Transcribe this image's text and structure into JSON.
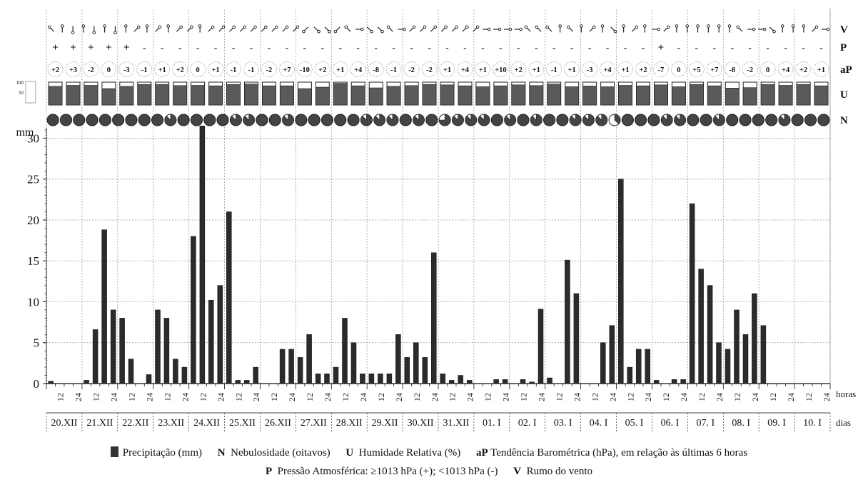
{
  "chart_data": {
    "type": "bar",
    "ylabel": "mm",
    "ylim": [
      0,
      31
    ],
    "yticks": [
      0,
      5,
      10,
      15,
      20,
      25,
      30
    ],
    "xlabel_hours": "horas",
    "xlabel_days": "dias",
    "hour_ticks": [
      "12",
      "24"
    ],
    "days": [
      "20.XII",
      "21.XII",
      "22.XII",
      "23.XII",
      "24.XII",
      "25.XII",
      "26.XII",
      "27.XII",
      "28.XII",
      "29.XII",
      "30.XII",
      "31.XII",
      "01. I",
      "02. I",
      "03. I",
      "04. I",
      "05. I",
      "06. I",
      "07. I",
      "08. I",
      "09. I",
      "10. I"
    ],
    "precipitation": [
      0.3,
      0,
      0,
      0,
      0.4,
      6.6,
      18.8,
      9,
      8,
      3,
      0,
      1.1,
      9,
      8,
      3,
      2,
      18,
      31.5,
      10.2,
      12,
      21,
      0.4,
      0.4,
      2,
      0,
      0,
      4.2,
      4.2,
      3.2,
      6,
      1.2,
      1.2,
      2,
      8,
      5,
      1.2,
      1.2,
      1.2,
      1.2,
      6,
      3.2,
      5,
      3.2,
      16,
      1.2,
      0.4,
      1,
      0.4,
      0,
      0,
      0.5,
      0.5,
      0,
      0.5,
      0.2,
      9.1,
      0.7,
      0,
      15.1,
      11,
      0,
      0,
      5,
      7.1,
      25,
      2,
      4.2,
      4.2,
      0.4,
      0,
      0.5,
      0.5,
      22,
      14,
      12,
      5,
      4.2,
      9,
      6,
      11,
      7.1,
      0,
      0,
      0
    ],
    "wind_row_label": "V",
    "pressure_row_label": "P",
    "tendency_row_label": "aP",
    "humidity_row_label": "U",
    "cloud_row_label": "N",
    "humidity_scale_ticks": [
      "100",
      "50"
    ],
    "pressure_signs": [
      "+",
      "+",
      "+",
      "+",
      "+",
      "-",
      "-",
      "-",
      "-",
      "-",
      "-",
      "-",
      "-",
      "-",
      "-",
      "-",
      "-",
      "-",
      "-",
      "-",
      "-",
      "-",
      "-",
      "-",
      "-",
      "-",
      "-",
      "-",
      "-",
      "-",
      "-",
      "-",
      "-",
      "-",
      "+",
      "-",
      "-",
      "-",
      "-",
      "-",
      "-",
      "-",
      "-",
      "-",
      "-",
      "-",
      "-",
      "-",
      "-",
      "-",
      "-",
      "-",
      "+",
      "+",
      "+",
      "+",
      "-",
      "-",
      "-",
      "-",
      "-",
      "-",
      "-",
      "-",
      "-",
      "-",
      "-",
      "-",
      "-",
      "-",
      "-",
      "-",
      "-",
      "-",
      "-",
      "-",
      "-",
      "-",
      "-",
      "-",
      "-",
      "-",
      "-",
      "-",
      "-",
      "-",
      "-",
      "-"
    ],
    "tendency": [
      "+2",
      "+3",
      "-2",
      "0",
      "-3",
      "-1",
      "+1",
      "+2",
      "0",
      "+1",
      "-1",
      "-1",
      "-2",
      "+7",
      "-10",
      "+2",
      "+1",
      "+4",
      "-8",
      "-1",
      "-2",
      "-2",
      "+1",
      "+4",
      "+1",
      "+10",
      "+2",
      "+1",
      "-1",
      "+1",
      "-3",
      "+4",
      "+1",
      "+2",
      "-7",
      "0",
      "+5",
      "+7",
      "-8",
      "-2",
      "0",
      "+4",
      "+2",
      "+1"
    ],
    "humidity": [
      82,
      86,
      86,
      72,
      82,
      90,
      90,
      85,
      86,
      84,
      90,
      92,
      84,
      84,
      72,
      78,
      95,
      84,
      75,
      82,
      85,
      90,
      88,
      84,
      80,
      84,
      88,
      85,
      92,
      80,
      83,
      80,
      86,
      84,
      88,
      80,
      90,
      84,
      74,
      76,
      90,
      86,
      90,
      84
    ],
    "cloud_oktas": [
      8,
      8,
      8,
      8,
      8,
      8,
      8,
      8,
      8,
      7,
      8,
      8,
      8,
      8,
      7,
      7,
      8,
      8,
      7,
      8,
      8,
      8,
      8,
      8,
      7,
      7,
      7,
      8,
      7,
      8,
      6,
      7,
      7,
      7,
      8,
      7,
      8,
      7,
      8,
      8,
      7,
      7,
      7,
      3,
      8,
      8,
      8,
      7,
      7,
      8,
      8,
      7,
      8,
      8,
      8,
      8,
      7,
      8,
      8,
      8
    ],
    "wind_directions": [
      "NW",
      "N",
      "S",
      "N",
      "S",
      "N",
      "S",
      "N",
      "NE",
      "N",
      "NE",
      "N",
      "NE",
      "NE",
      "N",
      "NE",
      "NE",
      "NE",
      "NE",
      "NE",
      "NE",
      "NE",
      "NE",
      "NE",
      "SW",
      "SE",
      "SE",
      "SW",
      "NW",
      "E",
      "SE",
      "SE",
      "NW",
      "E",
      "NE",
      "NE",
      "NE",
      "NE",
      "NE",
      "NE",
      "NE",
      "E",
      "E",
      "E",
      "E",
      "NW",
      "NW",
      "NW",
      "N",
      "NW",
      "N",
      "NE",
      "N",
      "SE",
      "N",
      "NE",
      "N",
      "E",
      "NE",
      "N",
      "N",
      "N",
      "N",
      "N",
      "N",
      "NW",
      "E",
      "E",
      "SE",
      "N",
      "N",
      "N",
      "NE",
      "E"
    ],
    "legend": {
      "precip": "Precipitação (mm)",
      "n_key": "N",
      "n_text": "Nebulosidade (oitavos)",
      "u_key": "U",
      "u_text": "Humidade Relativa (%)",
      "ap_key": "aP",
      "ap_text": "Tendência Barométrica (hPa), em relação às últimas 6 horas",
      "p_key": "P",
      "p_text": "Pressão Atmosférica: ≥1013 hPa (+); <1013 hPa (-)",
      "v_key": "V",
      "v_text": "Rumo do vento"
    },
    "colors": {
      "bar": "#2b2b2b",
      "bar_edge": "#111111",
      "humidity_fill": "#5a5a5a",
      "cloud_fill": "#444444",
      "grid": "#9a9a9a"
    }
  }
}
